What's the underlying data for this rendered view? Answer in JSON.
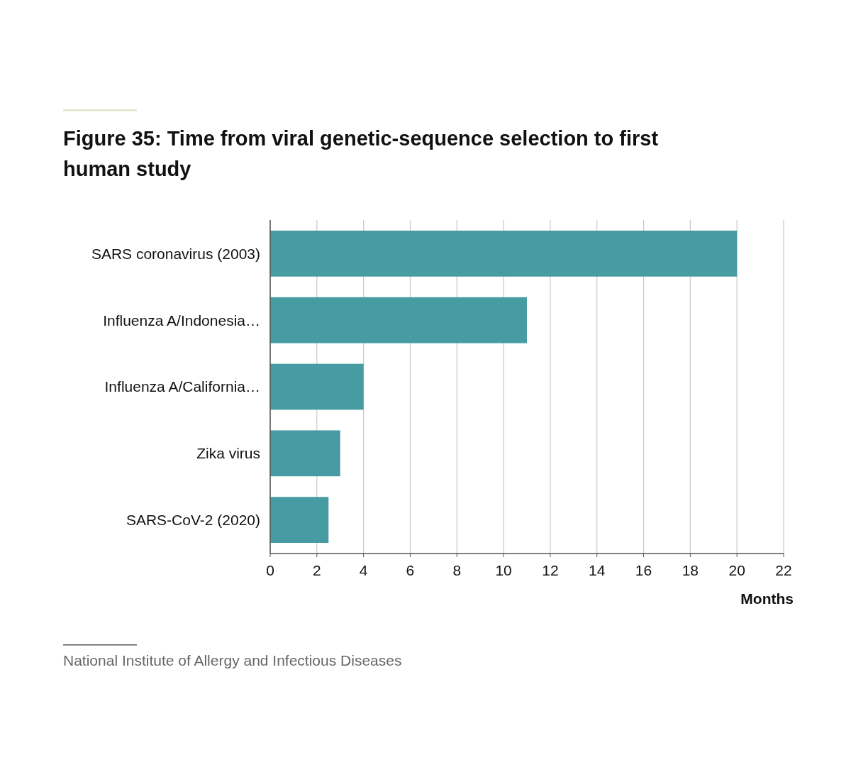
{
  "chart_data": {
    "type": "bar",
    "orientation": "horizontal",
    "title": "Figure 35: Time from viral genetic-sequence selection to first human study",
    "categories": [
      "SARS coronavirus (2003)",
      "Influenza A/Indonesia…",
      "Influenza A/California…",
      "Zika virus",
      "SARS-CoV-2 (2020)"
    ],
    "values": [
      20,
      11,
      4,
      3,
      2.5
    ],
    "color": "#479ba3",
    "xlim": [
      0,
      22
    ],
    "xticks": [
      0,
      2,
      4,
      6,
      8,
      10,
      12,
      14,
      16,
      18,
      20,
      22
    ],
    "xlabel": "Months",
    "grid": "x",
    "annotations": [
      "National Institute of Allergy and Infectious Diseases"
    ]
  }
}
